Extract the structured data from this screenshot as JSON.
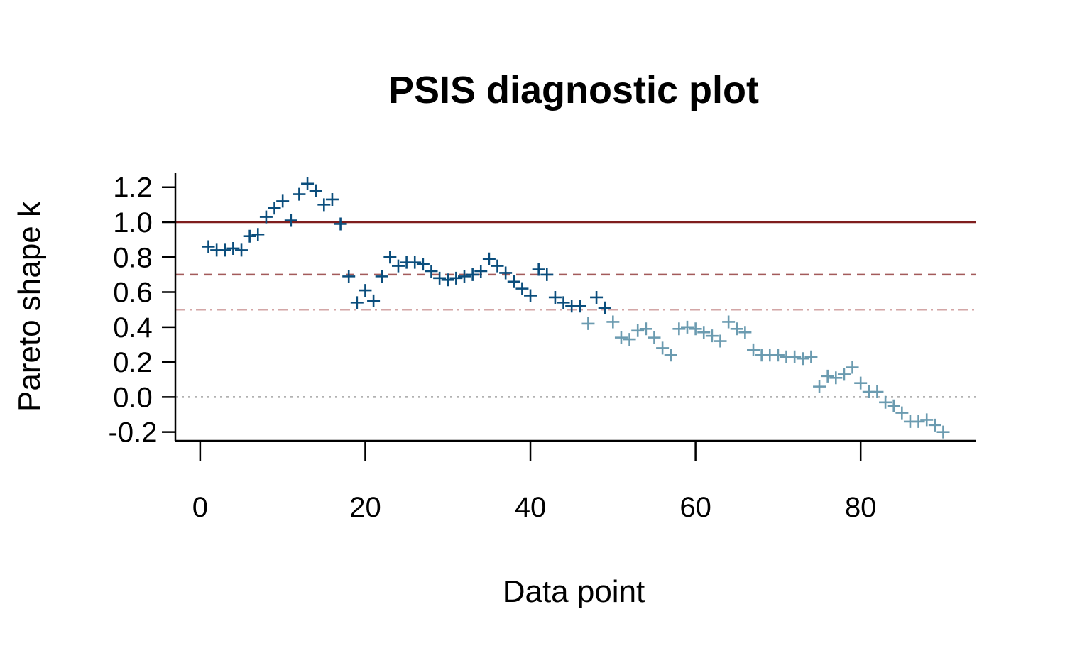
{
  "chart_data": {
    "type": "scatter",
    "title": "PSIS diagnostic plot",
    "xlabel": "Data point",
    "ylabel": "Pareto shape k",
    "xlim": [
      -3,
      94
    ],
    "ylim": [
      -0.25,
      1.28
    ],
    "x_ticks": [
      0,
      20,
      40,
      60,
      80
    ],
    "y_ticks": [
      1.2,
      1.0,
      0.8,
      0.6,
      0.4,
      0.2,
      0.0,
      -0.2
    ],
    "x_tick_labels": [
      "0",
      "20",
      "40",
      "60",
      "80"
    ],
    "y_tick_labels": [
      "1.2",
      "1.0",
      "0.8",
      "0.6",
      "0.4",
      "0.2",
      "0.0",
      "-0.2"
    ],
    "marker": "plus",
    "reference_lines": [
      {
        "y": 1.0,
        "style": "solid",
        "color": "#7f1d1d"
      },
      {
        "y": 0.7,
        "style": "dashed",
        "color": "#a35b5b"
      },
      {
        "y": 0.5,
        "style": "dashdot",
        "color": "#d3a6a6"
      },
      {
        "y": 0.0,
        "style": "dotted",
        "color": "#a6a6a6"
      }
    ],
    "colors": {
      "k_gt_0_5": "#0a4d7c",
      "k_le_0_5": "#6b9bb0"
    },
    "x": [
      1,
      2,
      3,
      4,
      5,
      6,
      7,
      8,
      9,
      10,
      11,
      12,
      13,
      14,
      15,
      16,
      17,
      18,
      19,
      20,
      21,
      22,
      23,
      24,
      25,
      26,
      27,
      28,
      29,
      30,
      31,
      32,
      33,
      34,
      35,
      36,
      37,
      38,
      39,
      40,
      41,
      42,
      43,
      44,
      45,
      46,
      47,
      48,
      49,
      50,
      51,
      52,
      53,
      54,
      55,
      56,
      57,
      58,
      59,
      60,
      61,
      62,
      63,
      64,
      65,
      66,
      67,
      68,
      69,
      70,
      71,
      72,
      73,
      74,
      75,
      76,
      77,
      78,
      79,
      80,
      81,
      82,
      83,
      84,
      85,
      86,
      87,
      88,
      89,
      90
    ],
    "y": [
      0.86,
      0.84,
      0.84,
      0.85,
      0.84,
      0.92,
      0.93,
      1.03,
      1.08,
      1.12,
      1.01,
      1.16,
      1.22,
      1.18,
      1.1,
      1.13,
      0.99,
      0.69,
      0.54,
      0.61,
      0.55,
      0.69,
      0.8,
      0.75,
      0.77,
      0.77,
      0.76,
      0.72,
      0.68,
      0.67,
      0.68,
      0.69,
      0.7,
      0.72,
      0.79,
      0.75,
      0.71,
      0.66,
      0.62,
      0.58,
      0.73,
      0.7,
      0.57,
      0.54,
      0.52,
      0.52,
      0.42,
      0.57,
      0.51,
      0.43,
      0.34,
      0.33,
      0.38,
      0.39,
      0.34,
      0.28,
      0.24,
      0.39,
      0.4,
      0.39,
      0.37,
      0.35,
      0.32,
      0.43,
      0.39,
      0.37,
      0.27,
      0.24,
      0.24,
      0.24,
      0.23,
      0.23,
      0.22,
      0.23,
      0.06,
      0.12,
      0.11,
      0.13,
      0.17,
      0.08,
      0.03,
      0.03,
      -0.03,
      -0.05,
      -0.09,
      -0.14,
      -0.14,
      -0.13,
      -0.16,
      -0.2
    ]
  }
}
